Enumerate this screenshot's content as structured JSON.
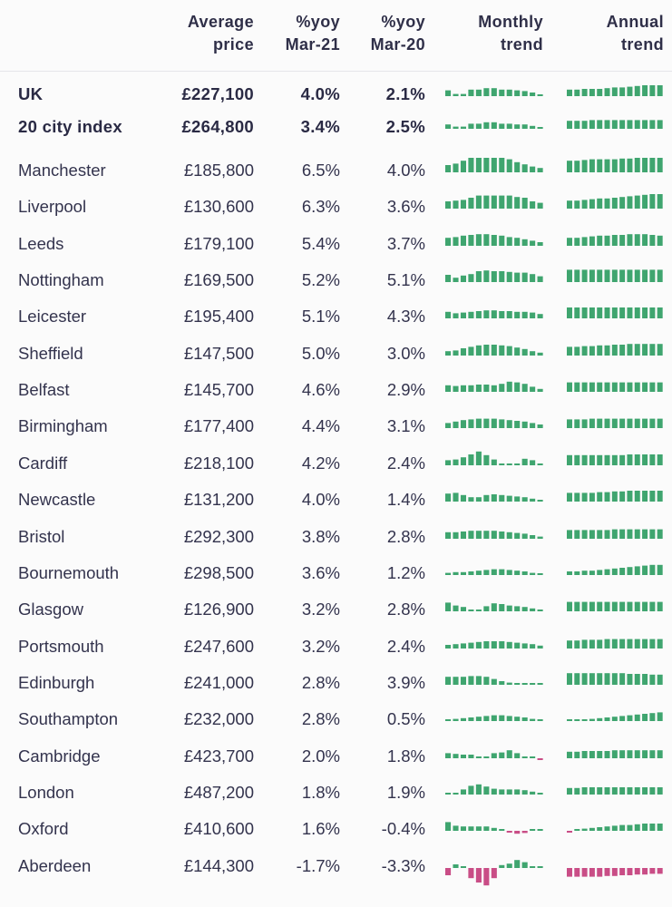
{
  "columns": {
    "city": "",
    "avg_price": [
      "Average",
      "price"
    ],
    "yoy21": [
      "%yoy",
      "Mar-21"
    ],
    "yoy20": [
      "%yoy",
      "Mar-20"
    ],
    "monthly": [
      "Monthly",
      "trend"
    ],
    "annual": [
      "Annual",
      "trend"
    ]
  },
  "colors": {
    "positive": "#3fa56f",
    "negative": "#c94d86",
    "text": "#33334d"
  },
  "chart_data": {
    "type": "table",
    "columns": [
      "",
      "Average price",
      "%yoy Mar-21",
      "%yoy Mar-20",
      "Monthly trend",
      "Annual trend"
    ],
    "rows": [
      {
        "city": "UK",
        "price": "£227,100",
        "yoy21": "4.0%",
        "yoy20": "2.1%",
        "bold": true,
        "monthly": [
          0.4,
          0.15,
          0.15,
          0.45,
          0.45,
          0.55,
          0.55,
          0.45,
          0.45,
          0.4,
          0.35,
          0.25,
          0.1
        ],
        "annual": [
          0.45,
          0.45,
          0.5,
          0.5,
          0.5,
          0.55,
          0.6,
          0.6,
          0.65,
          0.7,
          0.75,
          0.75,
          0.75
        ]
      },
      {
        "city": "20 city index",
        "price": "£264,800",
        "yoy21": "3.4%",
        "yoy20": "2.5%",
        "bold": true,
        "monthly": [
          0.3,
          0.15,
          0.15,
          0.35,
          0.35,
          0.45,
          0.45,
          0.35,
          0.35,
          0.3,
          0.3,
          0.2,
          0.1
        ],
        "annual": [
          0.55,
          0.55,
          0.55,
          0.6,
          0.6,
          0.6,
          0.6,
          0.6,
          0.6,
          0.6,
          0.6,
          0.6,
          0.6
        ]
      },
      {
        "city": "Manchester",
        "price": "£185,800",
        "yoy21": "6.5%",
        "yoy20": "4.0%",
        "monthly": [
          0.5,
          0.6,
          0.8,
          1,
          1,
          1,
          1,
          1,
          0.9,
          0.7,
          0.55,
          0.4,
          0.3
        ],
        "annual": [
          0.8,
          0.8,
          0.85,
          0.9,
          0.9,
          0.9,
          0.9,
          0.95,
          0.95,
          1,
          1,
          1,
          1
        ]
      },
      {
        "city": "Liverpool",
        "price": "£130,600",
        "yoy21": "6.3%",
        "yoy20": "3.6%",
        "monthly": [
          0.5,
          0.55,
          0.6,
          0.75,
          0.9,
          0.9,
          0.9,
          0.9,
          0.9,
          0.8,
          0.75,
          0.5,
          0.4
        ],
        "annual": [
          0.55,
          0.55,
          0.6,
          0.65,
          0.7,
          0.7,
          0.75,
          0.8,
          0.85,
          0.9,
          0.95,
          1,
          1
        ]
      },
      {
        "city": "Leeds",
        "price": "£179,100",
        "yoy21": "5.4%",
        "yoy20": "3.7%",
        "monthly": [
          0.55,
          0.6,
          0.7,
          0.75,
          0.8,
          0.8,
          0.75,
          0.7,
          0.6,
          0.55,
          0.45,
          0.35,
          0.25
        ],
        "annual": [
          0.55,
          0.55,
          0.6,
          0.65,
          0.7,
          0.7,
          0.75,
          0.75,
          0.8,
          0.8,
          0.8,
          0.75,
          0.7
        ]
      },
      {
        "city": "Nottingham",
        "price": "£169,500",
        "yoy21": "5.2%",
        "yoy20": "5.1%",
        "monthly": [
          0.5,
          0.3,
          0.45,
          0.55,
          0.75,
          0.8,
          0.75,
          0.75,
          0.7,
          0.65,
          0.65,
          0.55,
          0.4
        ],
        "annual": [
          0.85,
          0.85,
          0.85,
          0.85,
          0.85,
          0.85,
          0.85,
          0.85,
          0.85,
          0.85,
          0.85,
          0.85,
          0.85
        ]
      },
      {
        "city": "Leicester",
        "price": "£195,400",
        "yoy21": "5.1%",
        "yoy20": "4.3%",
        "monthly": [
          0.45,
          0.35,
          0.4,
          0.45,
          0.5,
          0.55,
          0.55,
          0.5,
          0.5,
          0.45,
          0.45,
          0.4,
          0.3
        ],
        "annual": [
          0.75,
          0.75,
          0.75,
          0.75,
          0.75,
          0.75,
          0.75,
          0.75,
          0.75,
          0.75,
          0.75,
          0.75,
          0.75
        ]
      },
      {
        "city": "Sheffield",
        "price": "£147,500",
        "yoy21": "5.0%",
        "yoy20": "3.0%",
        "monthly": [
          0.3,
          0.35,
          0.5,
          0.6,
          0.7,
          0.75,
          0.75,
          0.7,
          0.65,
          0.55,
          0.45,
          0.3,
          0.2
        ],
        "annual": [
          0.6,
          0.6,
          0.65,
          0.65,
          0.7,
          0.7,
          0.75,
          0.75,
          0.8,
          0.8,
          0.8,
          0.8,
          0.8
        ]
      },
      {
        "city": "Belfast",
        "price": "£145,700",
        "yoy21": "4.6%",
        "yoy20": "2.9%",
        "monthly": [
          0.45,
          0.4,
          0.45,
          0.45,
          0.5,
          0.5,
          0.45,
          0.55,
          0.7,
          0.65,
          0.55,
          0.35,
          0.2
        ],
        "annual": [
          0.65,
          0.65,
          0.65,
          0.65,
          0.65,
          0.65,
          0.65,
          0.65,
          0.65,
          0.65,
          0.65,
          0.65,
          0.65
        ]
      },
      {
        "city": "Birmingham",
        "price": "£177,400",
        "yoy21": "4.4%",
        "yoy20": "3.1%",
        "monthly": [
          0.35,
          0.45,
          0.55,
          0.6,
          0.65,
          0.65,
          0.65,
          0.6,
          0.55,
          0.5,
          0.45,
          0.35,
          0.25
        ],
        "annual": [
          0.6,
          0.6,
          0.6,
          0.65,
          0.65,
          0.65,
          0.65,
          0.65,
          0.65,
          0.65,
          0.65,
          0.65,
          0.65
        ]
      },
      {
        "city": "Cardiff",
        "price": "£218,100",
        "yoy21": "4.2%",
        "yoy20": "2.4%",
        "monthly": [
          0.35,
          0.4,
          0.55,
          0.75,
          0.95,
          0.7,
          0.4,
          0.1,
          0.1,
          0.1,
          0.45,
          0.35,
          0.1
        ],
        "annual": [
          0.7,
          0.7,
          0.7,
          0.7,
          0.7,
          0.7,
          0.7,
          0.7,
          0.75,
          0.75,
          0.75,
          0.75,
          0.75
        ]
      },
      {
        "city": "Newcastle",
        "price": "£131,200",
        "yoy21": "4.0%",
        "yoy20": "1.4%",
        "monthly": [
          0.55,
          0.6,
          0.45,
          0.3,
          0.3,
          0.45,
          0.5,
          0.45,
          0.4,
          0.35,
          0.3,
          0.2,
          0.1
        ],
        "annual": [
          0.6,
          0.6,
          0.6,
          0.6,
          0.65,
          0.65,
          0.7,
          0.7,
          0.75,
          0.75,
          0.75,
          0.75,
          0.75
        ]
      },
      {
        "city": "Bristol",
        "price": "£292,300",
        "yoy21": "3.8%",
        "yoy20": "2.8%",
        "monthly": [
          0.45,
          0.45,
          0.5,
          0.55,
          0.55,
          0.55,
          0.55,
          0.5,
          0.45,
          0.4,
          0.35,
          0.25,
          0.15
        ],
        "annual": [
          0.6,
          0.6,
          0.6,
          0.6,
          0.6,
          0.6,
          0.65,
          0.65,
          0.65,
          0.65,
          0.65,
          0.65,
          0.65
        ]
      },
      {
        "city": "Bournemouth",
        "price": "£298,500",
        "yoy21": "3.6%",
        "yoy20": "1.2%",
        "monthly": [
          0.15,
          0.2,
          0.2,
          0.25,
          0.3,
          0.35,
          0.4,
          0.4,
          0.35,
          0.3,
          0.25,
          0.15,
          0.1
        ],
        "annual": [
          0.25,
          0.25,
          0.3,
          0.3,
          0.35,
          0.4,
          0.45,
          0.5,
          0.55,
          0.6,
          0.65,
          0.7,
          0.7
        ]
      },
      {
        "city": "Glasgow",
        "price": "£126,900",
        "yoy21": "3.2%",
        "yoy20": "2.8%",
        "monthly": [
          0.6,
          0.4,
          0.3,
          0.1,
          0.1,
          0.35,
          0.55,
          0.5,
          0.4,
          0.35,
          0.3,
          0.2,
          0.1
        ],
        "annual": [
          0.65,
          0.65,
          0.65,
          0.65,
          0.65,
          0.65,
          0.65,
          0.65,
          0.65,
          0.65,
          0.65,
          0.65,
          0.65
        ]
      },
      {
        "city": "Portsmouth",
        "price": "£247,600",
        "yoy21": "3.2%",
        "yoy20": "2.4%",
        "monthly": [
          0.25,
          0.3,
          0.35,
          0.4,
          0.45,
          0.5,
          0.5,
          0.5,
          0.45,
          0.4,
          0.35,
          0.3,
          0.2
        ],
        "annual": [
          0.55,
          0.55,
          0.6,
          0.6,
          0.6,
          0.65,
          0.65,
          0.65,
          0.65,
          0.65,
          0.65,
          0.65,
          0.65
        ]
      },
      {
        "city": "Edinburgh",
        "price": "£241,000",
        "yoy21": "2.8%",
        "yoy20": "3.9%",
        "monthly": [
          0.55,
          0.55,
          0.55,
          0.6,
          0.6,
          0.55,
          0.4,
          0.25,
          0.15,
          0.1,
          0.1,
          0.1,
          0.1
        ],
        "annual": [
          0.8,
          0.8,
          0.8,
          0.8,
          0.8,
          0.8,
          0.8,
          0.8,
          0.75,
          0.75,
          0.75,
          0.7,
          0.7
        ]
      },
      {
        "city": "Southampton",
        "price": "£232,000",
        "yoy21": "2.8%",
        "yoy20": "0.5%",
        "monthly": [
          0.1,
          0.15,
          0.2,
          0.25,
          0.3,
          0.35,
          0.4,
          0.4,
          0.35,
          0.3,
          0.25,
          0.15,
          0.1
        ],
        "annual": [
          0.05,
          0.05,
          0.1,
          0.15,
          0.2,
          0.25,
          0.3,
          0.35,
          0.4,
          0.45,
          0.5,
          0.55,
          0.6
        ]
      },
      {
        "city": "Cambridge",
        "price": "£423,700",
        "yoy21": "2.0%",
        "yoy20": "1.8%",
        "monthly": [
          0.35,
          0.3,
          0.25,
          0.25,
          0.1,
          0.1,
          0.35,
          0.4,
          0.55,
          0.35,
          0.1,
          0.1,
          -0.1
        ],
        "annual": [
          0.45,
          0.45,
          0.5,
          0.5,
          0.5,
          0.5,
          0.55,
          0.55,
          0.55,
          0.55,
          0.55,
          0.55,
          0.55
        ]
      },
      {
        "city": "London",
        "price": "£487,200",
        "yoy21": "1.8%",
        "yoy20": "1.9%",
        "monthly": [
          0.1,
          0.1,
          0.35,
          0.6,
          0.7,
          0.55,
          0.4,
          0.35,
          0.35,
          0.35,
          0.3,
          0.2,
          0.1
        ],
        "annual": [
          0.45,
          0.45,
          0.5,
          0.5,
          0.5,
          0.5,
          0.5,
          0.5,
          0.5,
          0.5,
          0.5,
          0.5,
          0.5
        ]
      },
      {
        "city": "Oxford",
        "price": "£410,600",
        "yoy21": "1.6%",
        "yoy20": "-0.4%",
        "monthly": [
          0.6,
          0.35,
          0.3,
          0.3,
          0.3,
          0.3,
          0.2,
          0.1,
          -0.1,
          -0.2,
          -0.15,
          0.1,
          0.1
        ],
        "annual": [
          -0.1,
          0.1,
          0.15,
          0.2,
          0.25,
          0.3,
          0.35,
          0.4,
          0.4,
          0.45,
          0.5,
          0.5,
          0.5
        ]
      },
      {
        "city": "Aberdeen",
        "price": "£144,300",
        "yoy21": "-1.7%",
        "yoy20": "-3.3%",
        "monthly": [
          -0.5,
          0.25,
          0.1,
          -0.7,
          -1,
          -1.2,
          -0.7,
          0.2,
          0.3,
          0.55,
          0.4,
          0.1,
          0.1
        ],
        "annual": [
          -0.6,
          -0.6,
          -0.6,
          -0.6,
          -0.6,
          -0.55,
          -0.55,
          -0.5,
          -0.5,
          -0.45,
          -0.45,
          -0.4,
          -0.4
        ]
      }
    ]
  }
}
